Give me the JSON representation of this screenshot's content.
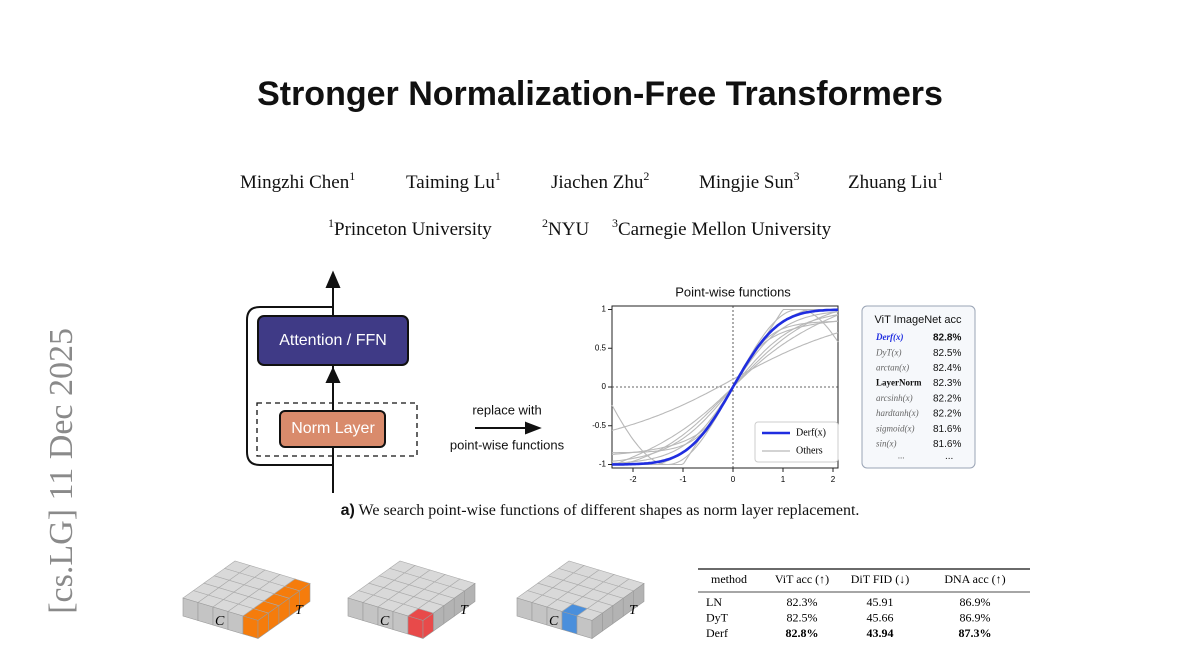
{
  "side_label": "[cs.LG]  11 Dec 2025",
  "header": {
    "title": "Stronger Normalization-Free Transformers",
    "authors": [
      {
        "name": "Mingzhi Chen",
        "affil": "1"
      },
      {
        "name": "Taiming Lu",
        "affil": "1"
      },
      {
        "name": "Jiachen Zhu",
        "affil": "2"
      },
      {
        "name": "Mingjie Sun",
        "affil": "3"
      },
      {
        "name": "Zhuang Liu",
        "affil": "1"
      }
    ],
    "affiliations": [
      {
        "mark": "1",
        "name": "Princeton University"
      },
      {
        "mark": "2",
        "name": "NYU"
      },
      {
        "mark": "3",
        "name": "Carnegie Mellon University"
      }
    ]
  },
  "figure_a": {
    "diagram": {
      "block": "Attention / FFN",
      "norm": "Norm Layer",
      "arrow_label": [
        "replace with",
        "point-wise functions"
      ]
    },
    "plot": {
      "title": "Point-wise functions",
      "xticks": [
        "-2",
        "-1",
        "0",
        "1",
        "2"
      ],
      "yticks": [
        "1",
        "0.5",
        "0",
        "-0.5",
        "-1"
      ],
      "legend": [
        "Derf(x)",
        "Others"
      ]
    },
    "inset": {
      "title": "ViT ImageNet acc",
      "rows": [
        [
          "Derf(x)",
          "82.8%"
        ],
        [
          "DyT(x)",
          "82.5%"
        ],
        [
          "arctan(x)",
          "82.4%"
        ],
        [
          "LayerNorm",
          "82.3%"
        ],
        [
          "arcsinh(x)",
          "82.2%"
        ],
        [
          "hardtanh(x)",
          "82.2%"
        ],
        [
          "sigmoid(x)",
          "81.6%"
        ],
        [
          "sin(x)",
          "81.6%"
        ],
        [
          "...",
          "..."
        ]
      ]
    },
    "caption": {
      "label": "a)",
      "text": "We search point-wise functions of different shapes as norm layer replacement."
    }
  },
  "figure_b": {
    "cube_labels": [
      {
        "c": "C",
        "t": "T"
      },
      {
        "c": "C",
        "t": "T"
      },
      {
        "c": "C",
        "t": "T"
      }
    ],
    "table": {
      "header": [
        "method",
        "ViT acc (↑)",
        "DiT FID (↓)",
        "DNA acc (↑)"
      ],
      "rows": [
        [
          "LN",
          "82.3%",
          "45.91",
          "86.9%"
        ],
        [
          "DyT",
          "82.5%",
          "45.66",
          "86.9%"
        ],
        [
          "Derf",
          "82.8%",
          "43.94",
          "87.3%"
        ]
      ]
    }
  }
}
